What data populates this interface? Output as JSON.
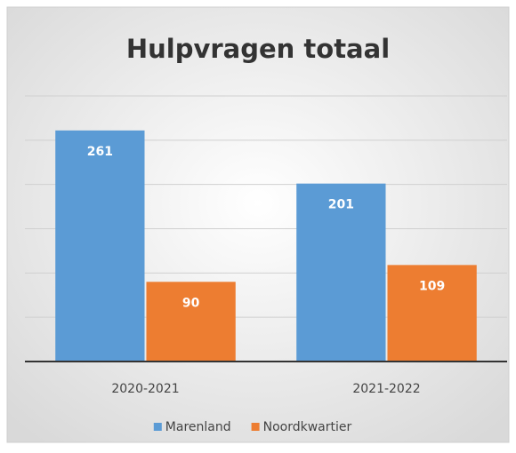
{
  "chart_data": {
    "type": "bar",
    "title": "Hulpvragen totaal",
    "categories": [
      "2020-2021",
      "2021-2022"
    ],
    "series": [
      {
        "name": "Marenland",
        "color": "#5b9bd5",
        "values": [
          261,
          201
        ]
      },
      {
        "name": "Noordkwartier",
        "color": "#ed7d31",
        "values": [
          90,
          109
        ]
      }
    ],
    "ylim": [
      0,
      300
    ],
    "yticks": [
      0,
      50,
      100,
      150,
      200,
      250,
      300
    ],
    "grid": true,
    "legend": "bottom"
  }
}
